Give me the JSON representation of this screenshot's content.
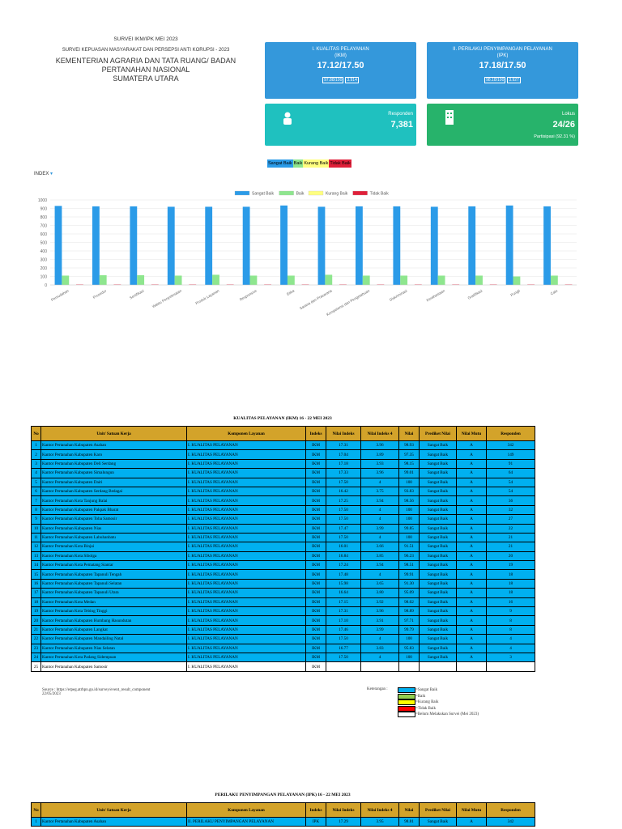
{
  "header": {
    "title": "SURVEI IKM/IPK MEI 2023",
    "subtitle": "SURVEI KEPUASAN MASYARAKAT DAN PERSEPSI ANTI KORUPSI - 2023",
    "org": "KEMENTERIAN AGRARIA DAN TATA RUANG/ BADAN PERTANAHAN NASIONAL",
    "region": "SUMATERA UTARA"
  },
  "ikm_card": {
    "title": "I. KUALITAS PELAYANAN",
    "code": "(IKM)",
    "score": "17.12/17.50",
    "percent": "97.88/100",
    "index": "3.914"
  },
  "ipk_card": {
    "title": "II. PERILAKU PENYIMPANGAN PELAYANAN",
    "code": "(IPK)",
    "score": "17.18/17.50",
    "percent": "98.18/100",
    "index": "3.927"
  },
  "respondent_card": {
    "label": "Responden",
    "value": "7,381"
  },
  "locus_card": {
    "label": "Lokus",
    "value": "24/26",
    "participation": "Partisipasi (92.31 %)"
  },
  "filter_buttons": [
    "Sangat Baik",
    "Baik",
    "Kurang Baik",
    "Tidak Baik"
  ],
  "index_label": "INDEX",
  "chart_data": {
    "type": "bar",
    "categories": [
      "Pemudahan",
      "Prosedur",
      "Sertifikasi",
      "Waktu Penyelesaian",
      "Produk Layanan",
      "Responsive",
      "Etika",
      "Sarana dan Prasarana",
      "Kompetensi dan Pengetahuan",
      "Diskriminasi",
      "Kerahasiaan",
      "Gratifikasi",
      "Pungli",
      "Calo"
    ],
    "series": [
      {
        "name": "Sangat Baik",
        "color": "#2b9be8",
        "values": [
          930,
          925,
          925,
          920,
          920,
          920,
          935,
          920,
          925,
          925,
          920,
          925,
          935,
          925
        ]
      },
      {
        "name": "Baik",
        "color": "#8ee68e",
        "values": [
          110,
          115,
          115,
          110,
          120,
          110,
          110,
          120,
          110,
          110,
          110,
          110,
          100,
          110
        ]
      },
      {
        "name": "Kurang Baik",
        "color": "#ffff80",
        "values": [
          0,
          0,
          0,
          0,
          0,
          0,
          0,
          0,
          0,
          0,
          0,
          0,
          0,
          0
        ]
      },
      {
        "name": "Tidak Baik",
        "color": "#e0203a",
        "values": [
          5,
          5,
          5,
          5,
          5,
          5,
          5,
          5,
          5,
          5,
          5,
          5,
          5,
          5
        ]
      }
    ],
    "ylim": [
      0,
      1000
    ],
    "yticks": [
      0,
      100,
      200,
      300,
      400,
      500,
      600,
      700,
      800,
      900,
      1000
    ],
    "grid": true,
    "legend": "top"
  },
  "ikm_table": {
    "title": "KUALITAS PELAYANAN (IKM) 16 - 22 MEI 2023",
    "columns": [
      "No",
      "Unit/ Satuan Kerja",
      "Komponen Layanan",
      "Indeks",
      "Nilai Indeks",
      "Nilai Indeks 4",
      "Nilai",
      "Prediket Nilai",
      "Nilai Mutu",
      "Responden"
    ],
    "rows": [
      {
        "color": "#00b0f0",
        "cells": [
          "1",
          "Kantor Pertanahan Kabupaten Asahan",
          "I. KUALITAS PELAYANAN",
          "IKM",
          "17.31",
          "3.96",
          "98.93",
          "Sangat Baik",
          "A",
          "342"
        ]
      },
      {
        "color": "#00b0f0",
        "cells": [
          "2",
          "Kantor Pertanahan Kabupaten Karo",
          "I. KUALITAS PELAYANAN",
          "IKM",
          "17.04",
          "3.89",
          "97.35",
          "Sangat Baik",
          "A",
          "149"
        ]
      },
      {
        "color": "#00b0f0",
        "cells": [
          "3",
          "Kantor Pertanahan Kabupaten Deli Serdang",
          "I. KUALITAS PELAYANAN",
          "IKM",
          "17.18",
          "3.93",
          "98.15",
          "Sangat Baik",
          "A",
          "91"
        ]
      },
      {
        "color": "#00b0f0",
        "cells": [
          "4",
          "Kantor Pertanahan Kabupaten Simalungun",
          "I. KUALITAS PELAYANAN",
          "IKM",
          "17.33",
          "3.96",
          "99.01",
          "Sangat Baik",
          "A",
          "64"
        ]
      },
      {
        "color": "#00b0f0",
        "cells": [
          "5",
          "Kantor Pertanahan Kabupaten Dairi",
          "I. KUALITAS PELAYANAN",
          "IKM",
          "17.50",
          "4",
          "100",
          "Sangat Baik",
          "A",
          "54"
        ]
      },
      {
        "color": "#00b0f0",
        "cells": [
          "6",
          "Kantor Pertanahan Kabupaten Serdang Bedagai",
          "I. KUALITAS PELAYANAN",
          "IKM",
          "16.42",
          "3.75",
          "93.83",
          "Sangat Baik",
          "A",
          "54"
        ]
      },
      {
        "color": "#00b0f0",
        "cells": [
          "7",
          "Kantor Pertanahan Kota Tanjung Balai",
          "I. KUALITAS PELAYANAN",
          "IKM",
          "17.25",
          "3.94",
          "98.56",
          "Sangat Baik",
          "A",
          "36"
        ]
      },
      {
        "color": "#00b0f0",
        "cells": [
          "8",
          "Kantor Pertanahan Kabupaten Pakpak Bharat",
          "I. KUALITAS PELAYANAN",
          "IKM",
          "17.50",
          "4",
          "100",
          "Sangat Baik",
          "A",
          "32"
        ]
      },
      {
        "color": "#00b0f0",
        "cells": [
          "9",
          "Kantor Pertanahan Kabupaten Toba Samosir",
          "I. KUALITAS PELAYANAN",
          "IKM",
          "17.50",
          "4",
          "100",
          "Sangat Baik",
          "A",
          "27"
        ]
      },
      {
        "color": "#00b0f0",
        "cells": [
          "10",
          "Kantor Pertanahan Kabupaten Nias",
          "I. KUALITAS PELAYANAN",
          "IKM",
          "17.47",
          "3.99",
          "99.85",
          "Sangat Baik",
          "A",
          "22"
        ]
      },
      {
        "color": "#00b0f0",
        "cells": [
          "11",
          "Kantor Pertanahan Kabupaten Labuhanbatu",
          "I. KUALITAS PELAYANAN",
          "IKM",
          "17.50",
          "4",
          "100",
          "Sangat Baik",
          "A",
          "21"
        ]
      },
      {
        "color": "#00b0f0",
        "cells": [
          "12",
          "Kantor Pertanahan Kota Binjai",
          "I. KUALITAS PELAYANAN",
          "IKM",
          "16.01",
          "3.66",
          "91.51",
          "Sangat Baik",
          "A",
          "21"
        ]
      },
      {
        "color": "#00b0f0",
        "cells": [
          "13",
          "Kantor Pertanahan Kota Sibolga",
          "I. KUALITAS PELAYANAN",
          "IKM",
          "16.84",
          "3.85",
          "96.23",
          "Sangat Baik",
          "A",
          "20"
        ]
      },
      {
        "color": "#00b0f0",
        "cells": [
          "14",
          "Kantor Pertanahan Kota Pematang Siantar",
          "I. KUALITAS PELAYANAN",
          "IKM",
          "17.24",
          "3.94",
          "98.51",
          "Sangat Baik",
          "A",
          "19"
        ]
      },
      {
        "color": "#00b0f0",
        "cells": [
          "15",
          "Kantor Pertanahan Kabupaten Tapanuli Tengah",
          "I. KUALITAS PELAYANAN",
          "IKM",
          "17.48",
          "4",
          "99.91",
          "Sangat Baik",
          "A",
          "18"
        ]
      },
      {
        "color": "#00b0f0",
        "cells": [
          "16",
          "Kantor Pertanahan Kabupaten Tapanuli Selatan",
          "I. KUALITAS PELAYANAN",
          "IKM",
          "15.98",
          "3.65",
          "91.30",
          "Sangat Baik",
          "A",
          "18"
        ]
      },
      {
        "color": "#00b0f0",
        "cells": [
          "17",
          "Kantor Pertanahan Kabupaten Tapanuli Utara",
          "I. KUALITAS PELAYANAN",
          "IKM",
          "16.64",
          "3.80",
          "95.09",
          "Sangat Baik",
          "A",
          "18"
        ]
      },
      {
        "color": "#00b0f0",
        "cells": [
          "18",
          "Kantor Pertanahan Kota Medan",
          "I. KUALITAS PELAYANAN",
          "IKM",
          "17.15",
          "3.92",
          "98.02",
          "Sangat Baik",
          "A",
          "16"
        ]
      },
      {
        "color": "#00b0f0",
        "cells": [
          "19",
          "Kantor Pertanahan Kota Tebing Tinggi",
          "I. KUALITAS PELAYANAN",
          "IKM",
          "17.31",
          "3.96",
          "98.89",
          "Sangat Baik",
          "A",
          "9"
        ]
      },
      {
        "color": "#00b0f0",
        "cells": [
          "20",
          "Kantor Pertanahan Kabupaten Humbang Hasundutan",
          "I. KUALITAS PELAYANAN",
          "IKM",
          "17.10",
          "3.91",
          "97.71",
          "Sangat Baik",
          "A",
          "8"
        ]
      },
      {
        "color": "#00b0f0",
        "cells": [
          "21",
          "Kantor Pertanahan Kabupaten Langkat",
          "I. KUALITAS PELAYANAN",
          "IKM",
          "17.46",
          "3.99",
          "99.79",
          "Sangat Baik",
          "A",
          "8"
        ]
      },
      {
        "color": "#00b0f0",
        "cells": [
          "22",
          "Kantor Pertanahan Kabupaten Mandailing Natal",
          "I. KUALITAS PELAYANAN",
          "IKM",
          "17.50",
          "4",
          "100",
          "Sangat Baik",
          "A",
          "4"
        ]
      },
      {
        "color": "#00b0f0",
        "cells": [
          "23",
          "Kantor Pertanahan Kabupaten Nias Selatan",
          "I. KUALITAS PELAYANAN",
          "IKM",
          "16.77",
          "3.83",
          "95.83",
          "Sangat Baik",
          "A",
          "4"
        ]
      },
      {
        "color": "#00b0f0",
        "cells": [
          "24",
          "Kantor Pertanahan Kota Padang Sidempuan",
          "I. KUALITAS PELAYANAN",
          "IKM",
          "17.50",
          "4",
          "100",
          "Sangat Baik",
          "A",
          "3"
        ]
      },
      {
        "color": "#ffffff",
        "cells": [
          "25",
          "Kantor Pertanahan Kabupaten Samosir",
          "I. KUALITAS PELAYANAN",
          "IKM"
        ]
      }
    ]
  },
  "source": {
    "text": "Source : https://erpeg.atrbpn.go.id/survey/event_result_component",
    "date": "22/05/2023"
  },
  "legend_key": {
    "title": "Keterangan :",
    "items": [
      {
        "label": "=Sangat Baik",
        "color": "#00b0f0"
      },
      {
        "label": "=Baik",
        "color": "#92d050"
      },
      {
        "label": "=Kurang Baik",
        "color": "#ffff00"
      },
      {
        "label": "=Tidak Baik",
        "color": "#ff0000"
      },
      {
        "label": "=Belum Melakukan Survei (Mei 2023)",
        "color": "#ffffff"
      }
    ]
  },
  "ipk_table": {
    "title": "PERILAKU PENYIMPANGAN PELAYANAN (IPK) 16 - 22 MEI 2023",
    "columns": [
      "No",
      "Unit/ Satuan Kerja",
      "Komponen Layanan",
      "Indeks",
      "Nilai Indeks",
      "Nilai Indeks 4",
      "Nilai",
      "Prediket Nilai",
      "Nilai Mutu",
      "Responden"
    ],
    "rows": [
      {
        "color": "#00b0f0",
        "cells": [
          "1",
          "Kantor Pertanahan Kabupaten Asahan",
          "II. PERILAKU PENYIMPANGAN PELAYANAN",
          "IPK",
          "17.29",
          "3.95",
          "98.81",
          "Sangat Baik",
          "A",
          "342"
        ]
      }
    ]
  }
}
